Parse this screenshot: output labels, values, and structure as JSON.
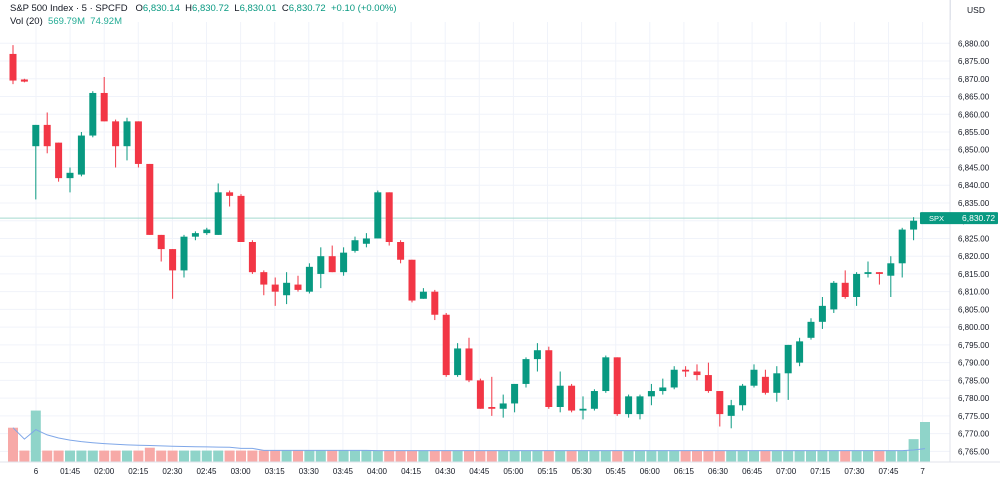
{
  "legend": {
    "symbol": "S&P 500 Index · 5 · SPCFD",
    "open_label": "O",
    "open": "6,830.14",
    "high_label": "H",
    "high": "6,830.72",
    "low_label": "L",
    "low": "6,830.01",
    "close_label": "C",
    "close": "6,830.72",
    "change": "+0.10 (+0.00%)",
    "vol_label": "Vol (20)",
    "vol_value": "569.79M",
    "vol_ma": "74.92M"
  },
  "price_scale": {
    "currency": "USD",
    "last_tag_symbol": "SPX",
    "last_price": "6,830.72"
  },
  "colors": {
    "up": "#089981",
    "down": "#f23645",
    "vol_up": "#8fd4c9",
    "vol_down": "#f7a9a7",
    "vol_ma": "#7fa7e8",
    "last_line": "#a4d9cf",
    "grid": "#f0f3fa",
    "text": "#131722"
  },
  "chart_data": {
    "type": "candlestick",
    "title": "S&P 500 Index · 5 · SPCFD",
    "interval": "5 minutes",
    "ylim": [
      6762,
      6886
    ],
    "yticks": [
      "6,880.00",
      "6,875.00",
      "6,870.00",
      "6,865.00",
      "6,860.00",
      "6,855.00",
      "6,850.00",
      "6,845.00",
      "6,840.00",
      "6,835.00",
      "6,830.00",
      "6,825.00",
      "6,820.00",
      "6,815.00",
      "6,810.00",
      "6,805.00",
      "6,800.00",
      "6,795.00",
      "6,790.00",
      "6,785.00",
      "6,780.00",
      "6,775.00",
      "6,770.00",
      "6,765.00"
    ],
    "xticks": [
      "6",
      "01:45",
      "02:00",
      "02:15",
      "02:30",
      "02:45",
      "03:00",
      "03:15",
      "03:30",
      "03:45",
      "04:00",
      "04:15",
      "04:30",
      "04:45",
      "05:00",
      "05:15",
      "05:30",
      "05:45",
      "06:00",
      "06:15",
      "06:30",
      "06:45",
      "07:00",
      "07:15",
      "07:30",
      "07:45",
      "7"
    ],
    "last_price": 6830.72,
    "grid": true,
    "candles": [
      {
        "o": 6877.0,
        "h": 6879.5,
        "l": 6868.5,
        "c": 6869.5
      },
      {
        "o": 6869.8,
        "h": 6870.0,
        "l": 6869.0,
        "c": 6869.2
      },
      {
        "o": 6851.0,
        "h": 6857.0,
        "l": 6836.0,
        "c": 6857.0
      },
      {
        "o": 6857.0,
        "h": 6860.5,
        "l": 6849.0,
        "c": 6851.0
      },
      {
        "o": 6852.0,
        "h": 6852.0,
        "l": 6841.0,
        "c": 6842.0
      },
      {
        "o": 6842.0,
        "h": 6845.0,
        "l": 6838.0,
        "c": 6843.5
      },
      {
        "o": 6843.0,
        "h": 6855.0,
        "l": 6842.5,
        "c": 6854.0
      },
      {
        "o": 6854.0,
        "h": 6866.5,
        "l": 6853.5,
        "c": 6866.0
      },
      {
        "o": 6866.0,
        "h": 6870.5,
        "l": 6858.0,
        "c": 6858.0
      },
      {
        "o": 6858.0,
        "h": 6858.5,
        "l": 6845.0,
        "c": 6851.0
      },
      {
        "o": 6851.0,
        "h": 6859.0,
        "l": 6847.0,
        "c": 6858.0
      },
      {
        "o": 6858.0,
        "h": 6858.0,
        "l": 6845.0,
        "c": 6846.0
      },
      {
        "o": 6846.0,
        "h": 6846.0,
        "l": 6826.0,
        "c": 6826.0
      },
      {
        "o": 6826.0,
        "h": 6826.0,
        "l": 6818.5,
        "c": 6822.0
      },
      {
        "o": 6822.0,
        "h": 6822.0,
        "l": 6808.0,
        "c": 6816.0
      },
      {
        "o": 6816.0,
        "h": 6826.0,
        "l": 6814.0,
        "c": 6825.5
      },
      {
        "o": 6825.5,
        "h": 6827.0,
        "l": 6824.5,
        "c": 6826.5
      },
      {
        "o": 6826.5,
        "h": 6828.0,
        "l": 6826.0,
        "c": 6827.5
      },
      {
        "o": 6826.0,
        "h": 6840.5,
        "l": 6826.0,
        "c": 6838.0
      },
      {
        "o": 6838.0,
        "h": 6838.5,
        "l": 6834.0,
        "c": 6837.0
      },
      {
        "o": 6837.0,
        "h": 6837.5,
        "l": 6824.0,
        "c": 6824.0
      },
      {
        "o": 6824.0,
        "h": 6824.5,
        "l": 6815.0,
        "c": 6815.5
      },
      {
        "o": 6815.5,
        "h": 6816.0,
        "l": 6809.0,
        "c": 6812.0
      },
      {
        "o": 6812.0,
        "h": 6814.0,
        "l": 6806.0,
        "c": 6810.0
      },
      {
        "o": 6809.0,
        "h": 6815.5,
        "l": 6806.5,
        "c": 6812.5
      },
      {
        "o": 6812.0,
        "h": 6814.5,
        "l": 6810.0,
        "c": 6810.5
      },
      {
        "o": 6810.0,
        "h": 6818.0,
        "l": 6809.5,
        "c": 6817.0
      },
      {
        "o": 6815.0,
        "h": 6822.5,
        "l": 6811.0,
        "c": 6820.0
      },
      {
        "o": 6820.0,
        "h": 6823.0,
        "l": 6815.5,
        "c": 6815.5
      },
      {
        "o": 6815.5,
        "h": 6822.5,
        "l": 6814.5,
        "c": 6821.0
      },
      {
        "o": 6821.5,
        "h": 6825.5,
        "l": 6821.0,
        "c": 6824.5
      },
      {
        "o": 6823.5,
        "h": 6826.5,
        "l": 6822.5,
        "c": 6825.0
      },
      {
        "o": 6825.0,
        "h": 6838.5,
        "l": 6825.0,
        "c": 6838.0
      },
      {
        "o": 6838.0,
        "h": 6838.0,
        "l": 6823.0,
        "c": 6824.0
      },
      {
        "o": 6824.0,
        "h": 6824.5,
        "l": 6818.0,
        "c": 6819.0
      },
      {
        "o": 6819.0,
        "h": 6819.0,
        "l": 6807.0,
        "c": 6807.5
      },
      {
        "o": 6808.0,
        "h": 6811.0,
        "l": 6808.0,
        "c": 6810.0
      },
      {
        "o": 6810.0,
        "h": 6810.5,
        "l": 6802.0,
        "c": 6803.5
      },
      {
        "o": 6803.5,
        "h": 6804.0,
        "l": 6786.0,
        "c": 6786.5
      },
      {
        "o": 6786.5,
        "h": 6795.5,
        "l": 6786.0,
        "c": 6794.0
      },
      {
        "o": 6794.0,
        "h": 6797.0,
        "l": 6784.5,
        "c": 6785.0
      },
      {
        "o": 6785.0,
        "h": 6785.5,
        "l": 6777.0,
        "c": 6777.0
      },
      {
        "o": 6777.5,
        "h": 6786.0,
        "l": 6775.0,
        "c": 6777.0
      },
      {
        "o": 6777.0,
        "h": 6781.0,
        "l": 6774.5,
        "c": 6778.5
      },
      {
        "o": 6778.5,
        "h": 6784.0,
        "l": 6776.0,
        "c": 6784.0
      },
      {
        "o": 6784.0,
        "h": 6791.5,
        "l": 6783.0,
        "c": 6791.0
      },
      {
        "o": 6791.0,
        "h": 6795.5,
        "l": 6787.5,
        "c": 6793.5
      },
      {
        "o": 6793.5,
        "h": 6794.5,
        "l": 6777.0,
        "c": 6777.5
      },
      {
        "o": 6777.5,
        "h": 6787.5,
        "l": 6776.0,
        "c": 6783.5
      },
      {
        "o": 6783.5,
        "h": 6784.0,
        "l": 6776.0,
        "c": 6776.5
      },
      {
        "o": 6776.5,
        "h": 6780.5,
        "l": 6774.0,
        "c": 6777.0
      },
      {
        "o": 6777.0,
        "h": 6782.5,
        "l": 6776.5,
        "c": 6782.0
      },
      {
        "o": 6782.0,
        "h": 6792.0,
        "l": 6781.5,
        "c": 6791.5
      },
      {
        "o": 6791.5,
        "h": 6791.5,
        "l": 6775.0,
        "c": 6775.5
      },
      {
        "o": 6775.5,
        "h": 6781.0,
        "l": 6774.5,
        "c": 6780.5
      },
      {
        "o": 6775.5,
        "h": 6781.0,
        "l": 6774.0,
        "c": 6780.5
      },
      {
        "o": 6780.5,
        "h": 6784.0,
        "l": 6778.0,
        "c": 6782.0
      },
      {
        "o": 6782.0,
        "h": 6785.5,
        "l": 6781.0,
        "c": 6783.0
      },
      {
        "o": 6783.0,
        "h": 6789.0,
        "l": 6782.5,
        "c": 6788.0
      },
      {
        "o": 6788.0,
        "h": 6789.0,
        "l": 6786.0,
        "c": 6787.5
      },
      {
        "o": 6787.5,
        "h": 6789.5,
        "l": 6785.0,
        "c": 6786.5
      },
      {
        "o": 6786.5,
        "h": 6790.0,
        "l": 6781.5,
        "c": 6782.0
      },
      {
        "o": 6782.0,
        "h": 6782.0,
        "l": 6772.0,
        "c": 6775.5
      },
      {
        "o": 6775.0,
        "h": 6779.5,
        "l": 6771.5,
        "c": 6778.0
      },
      {
        "o": 6778.0,
        "h": 6784.0,
        "l": 6776.5,
        "c": 6783.5
      },
      {
        "o": 6783.5,
        "h": 6789.5,
        "l": 6783.0,
        "c": 6788.0
      },
      {
        "o": 6786.0,
        "h": 6788.0,
        "l": 6781.0,
        "c": 6781.5
      },
      {
        "o": 6781.5,
        "h": 6789.0,
        "l": 6779.0,
        "c": 6787.0
      },
      {
        "o": 6787.0,
        "h": 6795.0,
        "l": 6779.5,
        "c": 6795.0
      },
      {
        "o": 6790.0,
        "h": 6797.0,
        "l": 6789.0,
        "c": 6796.0
      },
      {
        "o": 6797.0,
        "h": 6802.5,
        "l": 6796.5,
        "c": 6801.5
      },
      {
        "o": 6801.5,
        "h": 6808.5,
        "l": 6799.5,
        "c": 6806.0
      },
      {
        "o": 6805.0,
        "h": 6813.0,
        "l": 6804.0,
        "c": 6812.5
      },
      {
        "o": 6812.5,
        "h": 6816.0,
        "l": 6808.0,
        "c": 6808.5
      },
      {
        "o": 6808.5,
        "h": 6815.5,
        "l": 6806.0,
        "c": 6815.0
      },
      {
        "o": 6815.0,
        "h": 6818.5,
        "l": 6814.0,
        "c": 6815.5
      },
      {
        "o": 6815.5,
        "h": 6815.5,
        "l": 6812.0,
        "c": 6815.0
      },
      {
        "o": 6814.5,
        "h": 6820.0,
        "l": 6808.5,
        "c": 6818.0
      },
      {
        "o": 6818.0,
        "h": 6828.0,
        "l": 6814.0,
        "c": 6827.5
      },
      {
        "o": 6827.5,
        "h": 6831.0,
        "l": 6824.5,
        "c": 6830.0
      },
      {
        "o": 6830.14,
        "h": 6830.72,
        "l": 6830.01,
        "c": 6830.72
      }
    ],
    "volume_series": {
      "name": "Vol (20)",
      "values": [
        12,
        4,
        18,
        4,
        4,
        4,
        4,
        4,
        4,
        4,
        4,
        4,
        5,
        4,
        4,
        4,
        4,
        4,
        4,
        4,
        4,
        4,
        4,
        4,
        4,
        4,
        4,
        4,
        4,
        4,
        4,
        4,
        4,
        4,
        4,
        4,
        4,
        4,
        4,
        4,
        4,
        4,
        4,
        4,
        4,
        4,
        4,
        4,
        4,
        4,
        4,
        4,
        4,
        4,
        4,
        4,
        4,
        4,
        4,
        4,
        4,
        4,
        4,
        4,
        4,
        4,
        4,
        4,
        4,
        4,
        4,
        4,
        4,
        4,
        4,
        4,
        4,
        4,
        4,
        8,
        14,
        35
      ]
    }
  }
}
